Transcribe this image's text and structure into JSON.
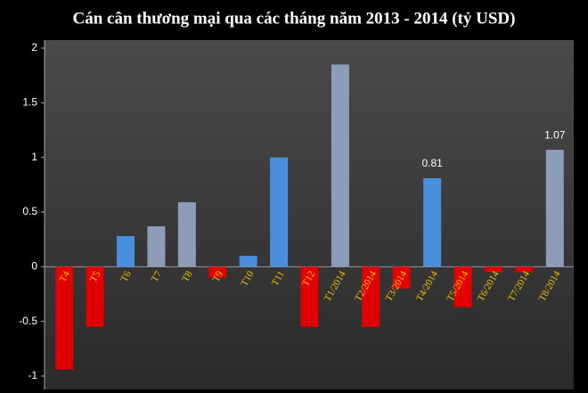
{
  "chart_data": {
    "type": "bar",
    "title": "Cán cân thương mại qua các tháng năm 2013 - 2014 (tỷ USD)",
    "categories": [
      "T4",
      "T5",
      "T6",
      "T7",
      "T8",
      "T9",
      "T10",
      "T11",
      "T12",
      "T1/2014",
      "T2/2014",
      "T3/2014",
      "T4/2014",
      "T5/2014",
      "T6/2014",
      "T7/2014",
      "T8/2014"
    ],
    "values": [
      -0.94,
      -0.55,
      0.28,
      0.37,
      0.59,
      -0.1,
      0.1,
      1.0,
      -0.55,
      1.85,
      -0.55,
      -0.2,
      0.81,
      -0.37,
      -0.05,
      -0.05,
      1.07
    ],
    "value_labels": [
      null,
      null,
      null,
      null,
      null,
      null,
      null,
      null,
      null,
      null,
      null,
      null,
      "0.81",
      null,
      null,
      null,
      "1.07"
    ],
    "colors": [
      "#e00000",
      "#e00000",
      "#4a8fdc",
      "#8d9cb8",
      "#8d9cb8",
      "#e00000",
      "#4a8fdc",
      "#4a8fdc",
      "#e00000",
      "#8d9cb8",
      "#e00000",
      "#e00000",
      "#4a8fdc",
      "#e00000",
      "#e00000",
      "#e00000",
      "#8d9cb8"
    ],
    "ylim": [
      -1,
      2
    ],
    "yticks": [
      -1,
      -0.5,
      0,
      0.5,
      1,
      1.5,
      2
    ],
    "grid": false
  }
}
